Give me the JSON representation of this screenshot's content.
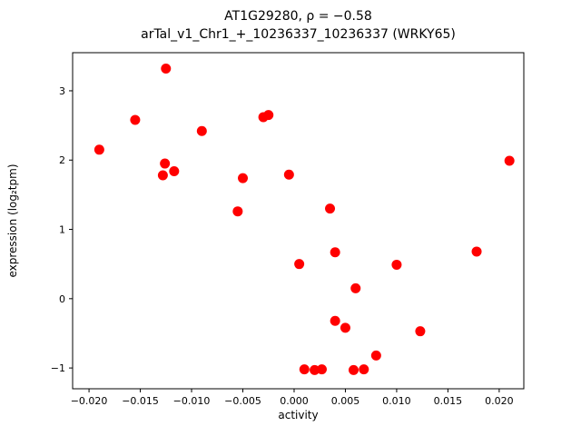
{
  "figure": {
    "title_line1": "AT1G29280, ρ = −0.58",
    "title_line2": "arTal_v1_Chr1_+_10236337_10236337 (WRKY65)",
    "xlabel": "activity",
    "ylabel": "expression (log₂tpm)"
  },
  "chart_data": {
    "type": "scatter",
    "title": "AT1G29280, ρ = −0.58\narTal_v1_Chr1_+_10236337_10236337 (WRKY65)",
    "xlabel": "activity",
    "ylabel": "expression (log2 tpm)",
    "marker_color": "#ff0000",
    "marker_radius": 5.5,
    "grid": false,
    "legend": null,
    "xlim": [
      -0.0216,
      0.0224
    ],
    "ylim": [
      -1.3,
      3.55
    ],
    "x_ticks": [
      -0.02,
      -0.015,
      -0.01,
      -0.005,
      0.0,
      0.005,
      0.01,
      0.015,
      0.02
    ],
    "x_tick_labels": [
      "−0.020",
      "−0.015",
      "−0.010",
      "−0.005",
      "0.000",
      "0.005",
      "0.010",
      "0.015",
      "0.020"
    ],
    "y_ticks": [
      -1,
      0,
      1,
      2,
      3
    ],
    "y_tick_labels": [
      "−1",
      "0",
      "1",
      "2",
      "3"
    ],
    "points": [
      [
        -0.019,
        2.15
      ],
      [
        -0.0155,
        2.58
      ],
      [
        -0.0125,
        3.32
      ],
      [
        -0.0126,
        1.95
      ],
      [
        -0.0128,
        1.78
      ],
      [
        -0.0117,
        1.84
      ],
      [
        -0.009,
        2.42
      ],
      [
        -0.0055,
        1.26
      ],
      [
        -0.005,
        1.74
      ],
      [
        -0.003,
        2.62
      ],
      [
        -0.0025,
        2.65
      ],
      [
        -0.0005,
        1.79
      ],
      [
        0.0005,
        0.5
      ],
      [
        0.001,
        -1.02
      ],
      [
        0.002,
        -1.03
      ],
      [
        0.0027,
        -1.02
      ],
      [
        0.0035,
        1.3
      ],
      [
        0.004,
        0.67
      ],
      [
        0.004,
        -0.32
      ],
      [
        0.005,
        -0.42
      ],
      [
        0.006,
        0.15
      ],
      [
        0.0058,
        -1.03
      ],
      [
        0.0068,
        -1.02
      ],
      [
        0.008,
        -0.82
      ],
      [
        0.01,
        0.49
      ],
      [
        0.0123,
        -0.47
      ],
      [
        0.0178,
        0.68
      ],
      [
        0.021,
        1.99
      ]
    ]
  }
}
